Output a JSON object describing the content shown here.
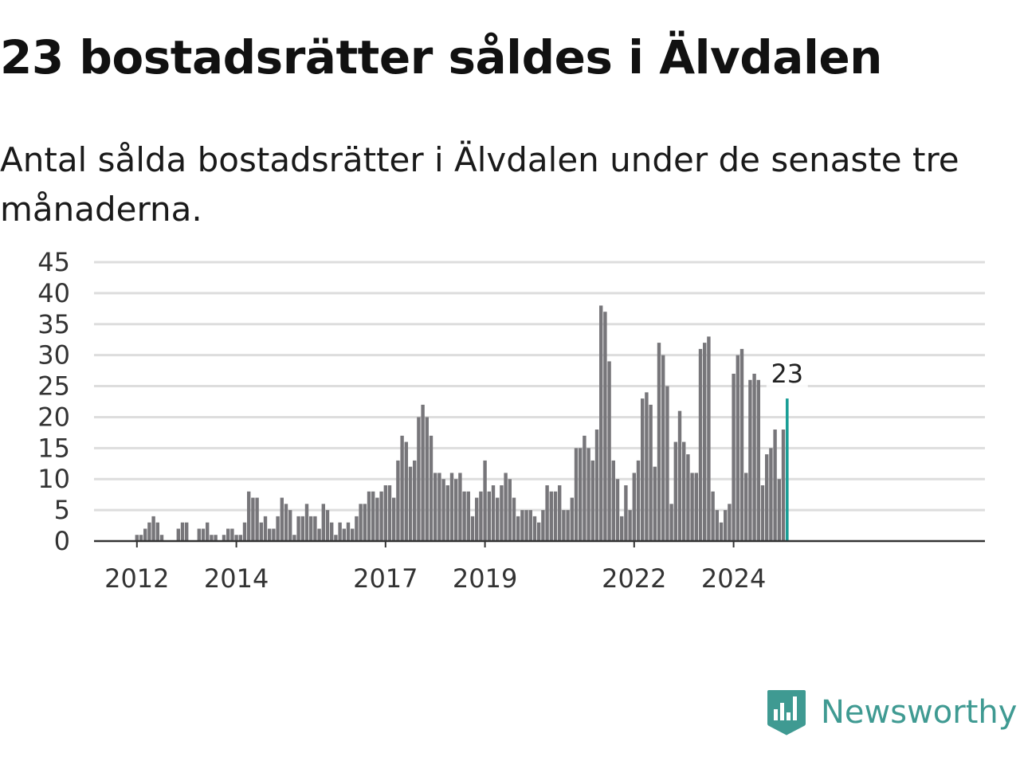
{
  "header": {
    "title": "23 bostadsrätter såldes i Älvdalen",
    "subtitle": "Antal sålda bostadsrätter i Älvdalen under de senaste tre månaderna."
  },
  "brand": {
    "name": "Newsworthy",
    "color": "#3f9a92",
    "icon": "newsworthy-logo-icon"
  },
  "colors": {
    "bar": "#77767a",
    "highlight": "#1a9e96",
    "grid": "#dddddd",
    "axis": "#333333"
  },
  "chart_data": {
    "type": "bar",
    "xlabel": "",
    "ylabel": "",
    "ylim": [
      0,
      45
    ],
    "yticks": [
      0,
      5,
      10,
      15,
      20,
      25,
      30,
      35,
      40,
      45
    ],
    "xticks": [
      "2012",
      "2014",
      "2017",
      "2019",
      "2022",
      "2024"
    ],
    "grid": true,
    "start": "2011-05",
    "highlight_label": "23",
    "values": [
      0,
      0,
      0,
      0,
      0,
      0,
      0,
      0,
      1,
      1,
      2,
      3,
      4,
      3,
      1,
      0,
      0,
      0,
      2,
      3,
      3,
      0,
      0,
      2,
      2,
      3,
      1,
      1,
      0,
      1,
      2,
      2,
      1,
      1,
      3,
      8,
      7,
      7,
      3,
      4,
      2,
      2,
      4,
      7,
      6,
      5,
      1,
      4,
      4,
      6,
      4,
      4,
      2,
      6,
      5,
      3,
      1,
      3,
      2,
      3,
      2,
      4,
      6,
      6,
      8,
      8,
      7,
      8,
      9,
      9,
      7,
      13,
      17,
      16,
      12,
      13,
      20,
      22,
      20,
      17,
      11,
      11,
      10,
      9,
      11,
      10,
      11,
      8,
      8,
      4,
      7,
      8,
      13,
      8,
      9,
      7,
      9,
      11,
      10,
      7,
      4,
      5,
      5,
      5,
      4,
      3,
      5,
      9,
      8,
      8,
      9,
      5,
      5,
      7,
      15,
      15,
      17,
      15,
      13,
      18,
      38,
      37,
      29,
      13,
      10,
      4,
      9,
      5,
      11,
      13,
      23,
      24,
      22,
      12,
      32,
      30,
      25,
      6,
      16,
      21,
      16,
      14,
      11,
      11,
      31,
      32,
      33,
      8,
      5,
      3,
      5,
      6,
      27,
      30,
      31,
      11,
      26,
      27,
      26,
      9,
      14,
      15,
      18,
      10,
      18,
      23
    ]
  }
}
